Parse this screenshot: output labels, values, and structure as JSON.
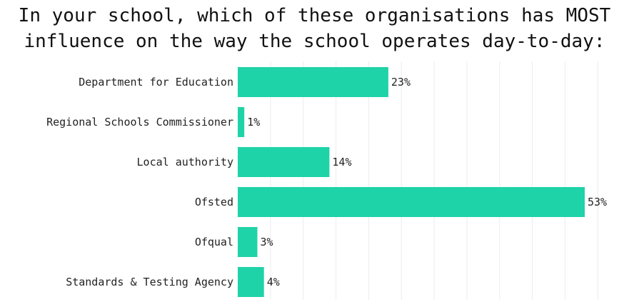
{
  "chart_data": {
    "type": "bar",
    "orientation": "horizontal",
    "title": "In your school, which of these organisations has MOST influence on the way the school operates day-to-day:",
    "title_lines": [
      "In your school, which of these organisations has MOST",
      "influence on the way the school operates day-to-day:"
    ],
    "categories": [
      "Department for Education",
      "Regional Schools Commissioner",
      "Local authority",
      "Ofsted",
      "Ofqual",
      "Standards & Testing Agency"
    ],
    "values": [
      23,
      1,
      14,
      53,
      3,
      4
    ],
    "data_labels": [
      "23%",
      "1%",
      "14%",
      "53%",
      "3%",
      "4%"
    ],
    "unit": "%",
    "xlim": [
      0,
      60
    ],
    "grid": true,
    "legend": false,
    "bar_color": "#1fd3a8",
    "grid_color": "#ececec"
  }
}
